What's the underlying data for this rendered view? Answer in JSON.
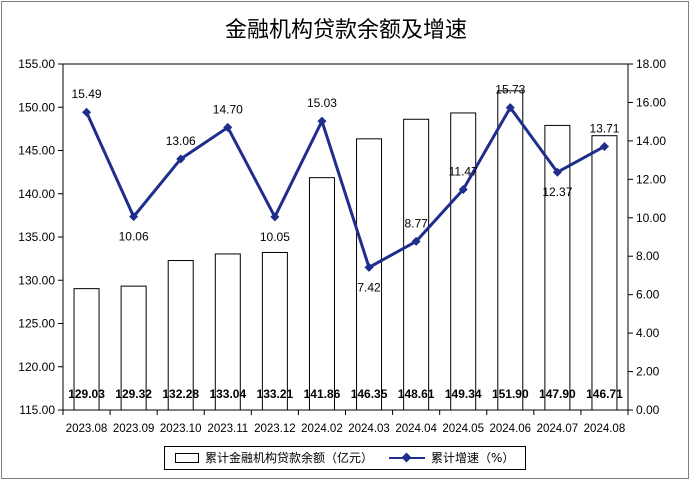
{
  "chart_data": {
    "type": "bar+line",
    "title": "金融机构贷款余额及增速",
    "categories": [
      "2023.08",
      "2023.09",
      "2023.10",
      "2023.11",
      "2023.12",
      "2024.02",
      "2024.03",
      "2024.04",
      "2024.05",
      "2024.06",
      "2024.07",
      "2024.08"
    ],
    "series": [
      {
        "name": "累计金融机构贷款余额（亿元）",
        "type": "bar",
        "axis": "left",
        "values": [
          129.03,
          129.32,
          132.28,
          133.04,
          133.21,
          141.86,
          146.35,
          148.61,
          149.34,
          151.9,
          147.9,
          146.71
        ],
        "labels": [
          "129.03",
          "129.32",
          "132.28",
          "133.04",
          "133.21",
          "141.86",
          "146.35",
          "148.61",
          "149.34",
          "151.90",
          "147.90",
          "146.71"
        ],
        "color": "#ffffff"
      },
      {
        "name": "累计增速（%）",
        "type": "line",
        "axis": "right",
        "values": [
          15.49,
          10.06,
          13.06,
          14.7,
          10.05,
          15.03,
          7.42,
          8.77,
          11.47,
          15.73,
          12.37,
          13.71
        ],
        "labels": [
          "15.49",
          "10.06",
          "13.06",
          "14.70",
          "10.05",
          "15.03",
          "7.42",
          "8.77",
          "11.47",
          "15.73",
          "12.37",
          "13.71"
        ],
        "color": "#1f2e8c"
      }
    ],
    "left_axis": {
      "ylim": [
        115,
        155
      ],
      "ticks": [
        "115.00",
        "120.00",
        "125.00",
        "130.00",
        "135.00",
        "140.00",
        "145.00",
        "150.00",
        "155.00"
      ]
    },
    "right_axis": {
      "ylim": [
        0,
        18
      ],
      "ticks": [
        "0.00",
        "2.00",
        "4.00",
        "6.00",
        "8.00",
        "10.00",
        "12.00",
        "14.00",
        "16.00",
        "18.00"
      ]
    },
    "grid": false,
    "legend_position": "bottom"
  }
}
